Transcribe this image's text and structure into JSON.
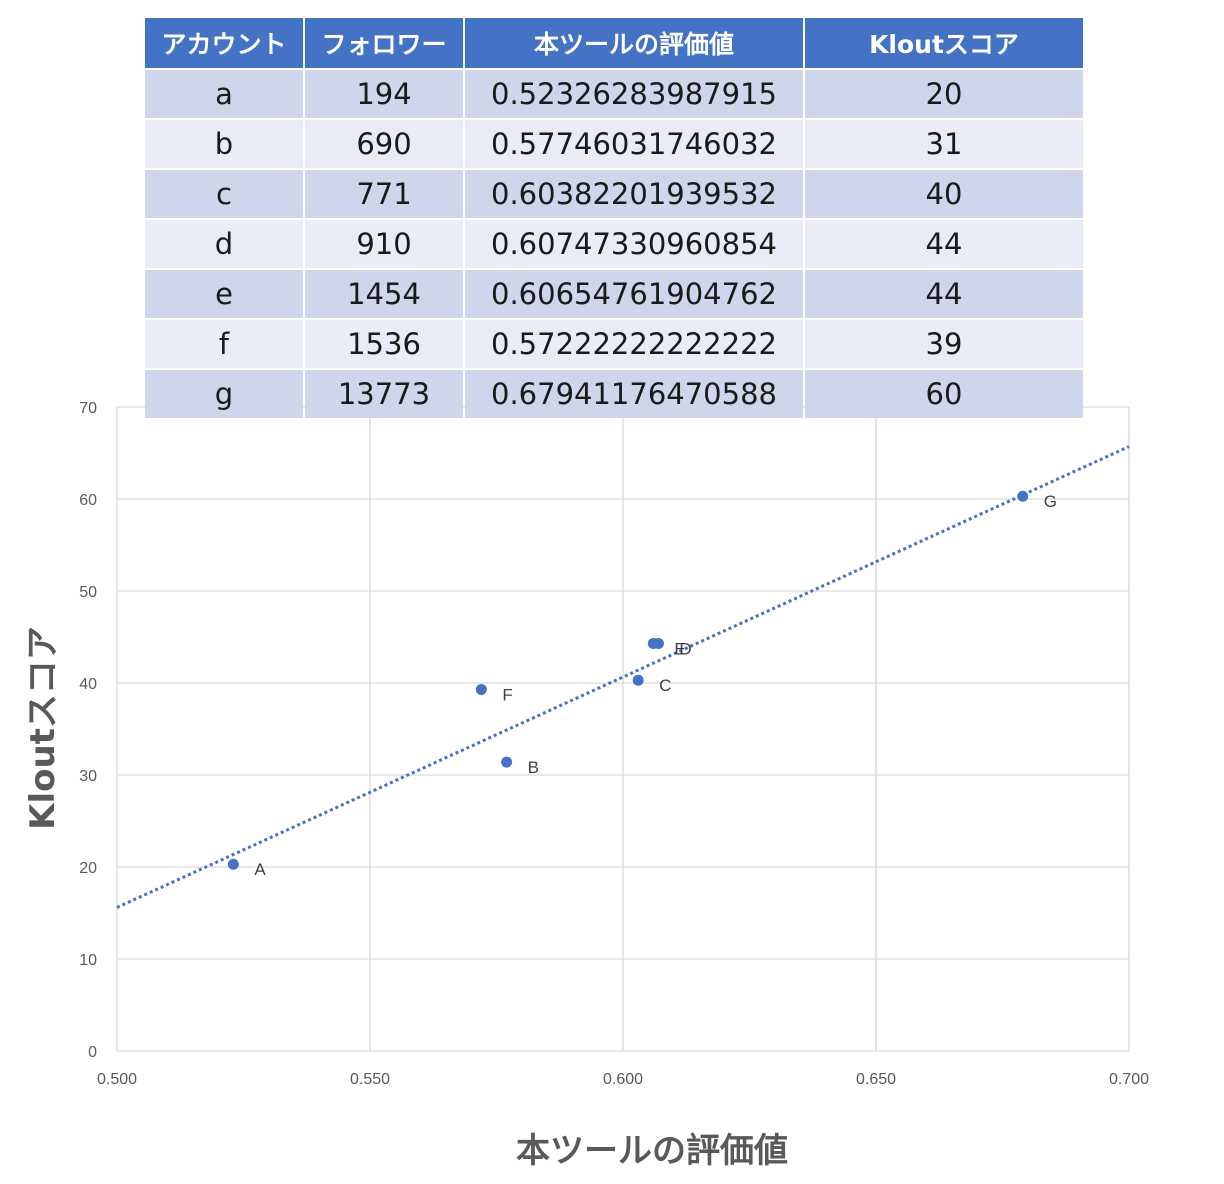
{
  "table": {
    "headers": [
      "アカウント",
      "フォロワー",
      "本ツールの評価値",
      "Kloutスコア"
    ],
    "rows": [
      [
        "a",
        "194",
        "0.52326283987915",
        "20"
      ],
      [
        "b",
        "690",
        "0.57746031746032",
        "31"
      ],
      [
        "c",
        "771",
        "0.60382201939532",
        "40"
      ],
      [
        "d",
        "910",
        "0.60747330960854",
        "44"
      ],
      [
        "e",
        "1454",
        "0.60654761904762",
        "44"
      ],
      [
        "f",
        "1536",
        "0.57222222222222",
        "39"
      ],
      [
        "g",
        "13773",
        "0.67941176470588",
        "60"
      ]
    ]
  },
  "chart_data": {
    "type": "scatter",
    "xlabel": "本ツールの評価値",
    "ylabel": "Kloutスコア",
    "xlim": [
      0.5,
      0.7
    ],
    "ylim": [
      0,
      70
    ],
    "xticks": [
      "0.500",
      "0.550",
      "0.600",
      "0.650",
      "0.700"
    ],
    "yticks": [
      "0",
      "10",
      "20",
      "30",
      "40",
      "50",
      "60",
      "70"
    ],
    "grid": true,
    "point_color": "#4472c4",
    "trendline": {
      "type": "linear",
      "style": "dotted",
      "color": "#4472c4",
      "y_at_xmin": 15.6,
      "y_at_xmax": 65.7
    },
    "points": [
      {
        "label": "A",
        "x": 0.523,
        "y": 20.3
      },
      {
        "label": "B",
        "x": 0.577,
        "y": 31.4
      },
      {
        "label": "C",
        "x": 0.603,
        "y": 40.3
      },
      {
        "label": "D",
        "x": 0.607,
        "y": 44.3
      },
      {
        "label": "E",
        "x": 0.606,
        "y": 44.3
      },
      {
        "label": "F",
        "x": 0.572,
        "y": 39.3
      },
      {
        "label": "G",
        "x": 0.679,
        "y": 60.3
      }
    ]
  }
}
